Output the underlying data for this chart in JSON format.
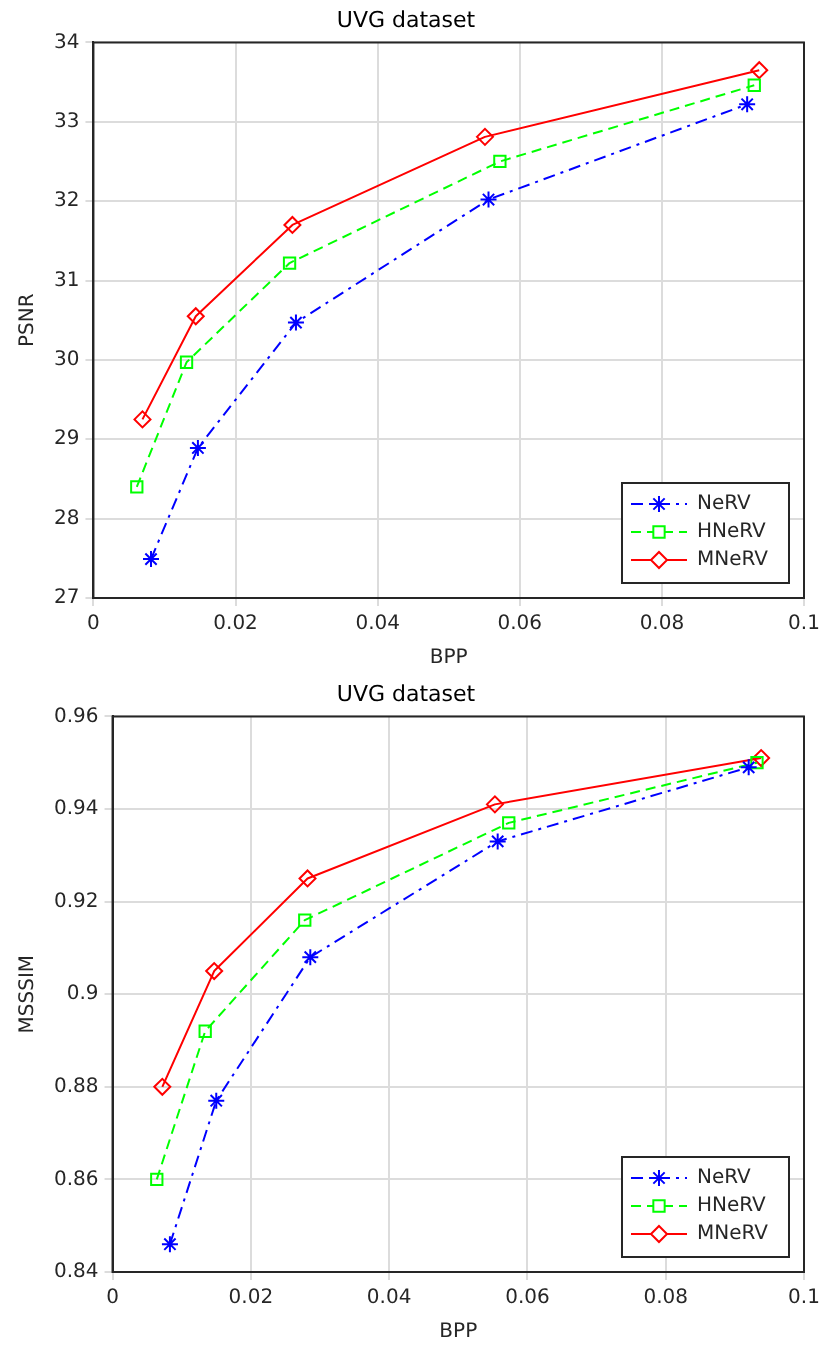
{
  "chart_data": [
    {
      "type": "line",
      "title": "UVG dataset",
      "xlabel": "BPP",
      "ylabel": "PSNR",
      "xlim": [
        0,
        0.1
      ],
      "xticks": [
        0,
        0.02,
        0.04,
        0.06,
        0.08,
        0.1
      ],
      "ylim": [
        27,
        34
      ],
      "yticks": [
        27,
        28,
        29,
        30,
        31,
        32,
        33,
        34
      ],
      "grid": true,
      "legend": "bottom right",
      "series": [
        {
          "name": "NeRV",
          "color": "#0000ff",
          "marker": "cross",
          "line_style": "dashdot",
          "x": [
            0.0081,
            0.0147,
            0.0285,
            0.0556,
            0.092
          ],
          "values": [
            27.49,
            28.89,
            30.47,
            32.02,
            33.22
          ]
        },
        {
          "name": "HNeRV",
          "color": "#00ff00",
          "marker": "square",
          "line_style": "dashed",
          "x": [
            0.0061,
            0.0131,
            0.0276,
            0.0572,
            0.093
          ],
          "values": [
            28.4,
            29.97,
            31.22,
            32.5,
            33.46
          ]
        },
        {
          "name": "MNeRV",
          "color": "#ff0000",
          "marker": "diamond",
          "line_style": "solid",
          "x": [
            0.0069,
            0.0144,
            0.028,
            0.0551,
            0.0937
          ],
          "values": [
            29.25,
            30.55,
            31.7,
            32.81,
            33.65
          ]
        }
      ]
    },
    {
      "type": "line",
      "title": "UVG dataset",
      "xlabel": "BPP",
      "ylabel": "MSSSIM",
      "xlim": [
        0,
        0.1
      ],
      "xticks": [
        0,
        0.02,
        0.04,
        0.06,
        0.08,
        0.1
      ],
      "ylim": [
        0.84,
        0.96
      ],
      "yticks": [
        0.84,
        0.86,
        0.88,
        0.9,
        0.92,
        0.94,
        0.96
      ],
      "grid": true,
      "legend": "bottom right",
      "series": [
        {
          "name": "NeRV",
          "color": "#0000ff",
          "marker": "cross",
          "line_style": "dashdot",
          "x": [
            0.0083,
            0.015,
            0.0286,
            0.0557,
            0.092
          ],
          "values": [
            0.846,
            0.877,
            0.908,
            0.933,
            0.949
          ]
        },
        {
          "name": "HNeRV",
          "color": "#00ff00",
          "marker": "square",
          "line_style": "dashed",
          "x": [
            0.0064,
            0.0134,
            0.0278,
            0.0573,
            0.0932
          ],
          "values": [
            0.86,
            0.892,
            0.916,
            0.937,
            0.95
          ]
        },
        {
          "name": "MNeRV",
          "color": "#ff0000",
          "marker": "diamond",
          "line_style": "solid",
          "x": [
            0.0072,
            0.0147,
            0.0282,
            0.0553,
            0.0938
          ],
          "values": [
            0.88,
            0.905,
            0.925,
            0.941,
            0.951
          ]
        }
      ]
    }
  ]
}
